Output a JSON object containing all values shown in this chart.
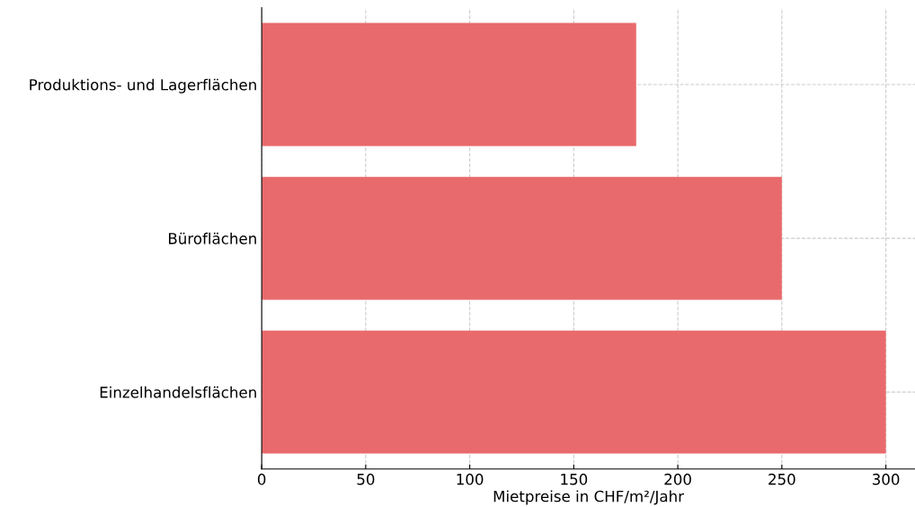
{
  "chart_data": {
    "type": "bar",
    "orientation": "horizontal",
    "xlabel": "Mietpreise in CHF/m²/Jahr",
    "categories": [
      "Produktions- und Lagerflächen",
      "Büroflächen",
      "Einzelhandelsflächen"
    ],
    "values": [
      180,
      250,
      300
    ],
    "color": "#e96a6c",
    "xlim": [
      0,
      314
    ],
    "xticks": [
      0,
      50,
      100,
      150,
      200,
      250,
      300
    ],
    "grid": true
  }
}
